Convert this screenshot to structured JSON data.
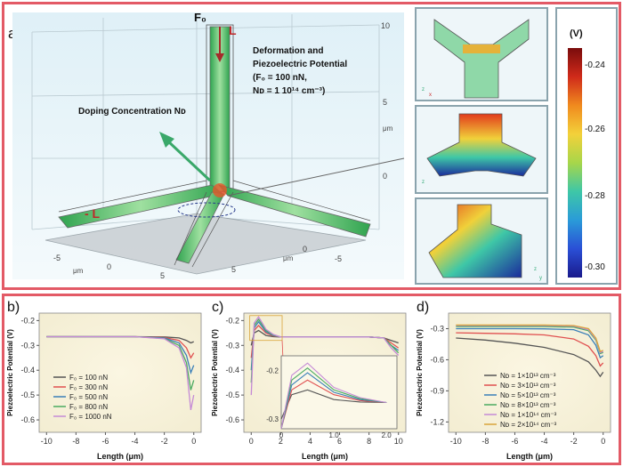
{
  "panel_a": {
    "letter": "a)",
    "force_label": "F₀",
    "length_top": "L",
    "length_left": "- L",
    "deformation_text": [
      "Deformation and",
      "Piezoelectric Potential",
      "(F₀ = 100 nN,",
      "Nᴅ = 1  10¹⁴ cm⁻³)"
    ],
    "doping_text": "Doping Concentration Nᴅ",
    "axis_ticks_vertical": [
      "10",
      "5",
      "0"
    ],
    "axis_unit": "μm",
    "floor_ticks_left": [
      "-5",
      "0",
      "5"
    ],
    "floor_ticks_right": [
      "-5",
      "0",
      "5"
    ],
    "colorbar": {
      "unit": "(V)",
      "ticks": [
        "-0.24",
        "-0.26",
        "-0.28",
        "-0.30"
      ],
      "colors": [
        "#7a0c0c",
        "#d02a1a",
        "#f08a1e",
        "#f3d13a",
        "#a7d64a",
        "#3ec7a7",
        "#2a9bd8",
        "#2a4fd6",
        "#1a1a8c"
      ]
    },
    "axes_labels": {
      "z": "z",
      "x": "x",
      "y": "y"
    }
  },
  "chart_data": [
    {
      "panel": "b)",
      "type": "line",
      "xlabel": "Length (μm)",
      "ylabel": "Piezoelectric Potential (V)",
      "xlim": [
        -10.5,
        0.5
      ],
      "ylim": [
        -0.65,
        -0.17
      ],
      "xticks": [
        -10,
        -8,
        -6,
        -4,
        -2,
        0
      ],
      "yticks": [
        -0.2,
        -0.3,
        -0.4,
        -0.5,
        -0.6
      ],
      "ytick_labels": [
        "-0.2",
        "-0.3",
        "-0.4",
        "-0.5",
        "-0.6"
      ],
      "series": [
        {
          "name": "F₀ = 100 nN",
          "color": "#555555",
          "x": [
            -10,
            -8,
            -6,
            -4,
            -2,
            -1,
            -0.5,
            -0.2,
            0
          ],
          "y": [
            -0.265,
            -0.265,
            -0.265,
            -0.265,
            -0.266,
            -0.27,
            -0.28,
            -0.29,
            -0.285
          ]
        },
        {
          "name": "F₀ = 300 nN",
          "color": "#e05050",
          "x": [
            -10,
            -8,
            -6,
            -4,
            -2,
            -1,
            -0.5,
            -0.2,
            0
          ],
          "y": [
            -0.265,
            -0.265,
            -0.265,
            -0.265,
            -0.268,
            -0.28,
            -0.31,
            -0.35,
            -0.33
          ]
        },
        {
          "name": "F₀ = 500 nN",
          "color": "#3a7fb8",
          "x": [
            -10,
            -8,
            -6,
            -4,
            -2,
            -1,
            -0.5,
            -0.2,
            0
          ],
          "y": [
            -0.265,
            -0.265,
            -0.265,
            -0.265,
            -0.27,
            -0.29,
            -0.34,
            -0.41,
            -0.38
          ]
        },
        {
          "name": "F₀ = 800 nN",
          "color": "#4aaa60",
          "x": [
            -10,
            -8,
            -6,
            -4,
            -2,
            -1,
            -0.5,
            -0.2,
            0
          ],
          "y": [
            -0.265,
            -0.265,
            -0.265,
            -0.265,
            -0.272,
            -0.3,
            -0.37,
            -0.48,
            -0.44
          ]
        },
        {
          "name": "F₀ = 1000 nN",
          "color": "#c58ad6",
          "x": [
            -10,
            -8,
            -6,
            -4,
            -2,
            -1,
            -0.5,
            -0.2,
            0
          ],
          "y": [
            -0.265,
            -0.265,
            -0.265,
            -0.265,
            -0.273,
            -0.31,
            -0.39,
            -0.56,
            -0.5
          ]
        }
      ]
    },
    {
      "panel": "c)",
      "type": "line",
      "xlabel": "Length (μm)",
      "ylabel": "Piezoelectric Potential (V)",
      "xlim": [
        -0.5,
        10.5
      ],
      "ylim": [
        -0.65,
        -0.17
      ],
      "xticks": [
        0,
        2,
        4,
        6,
        8,
        10
      ],
      "yticks": [
        -0.2,
        -0.3,
        -0.4,
        -0.5,
        -0.6
      ],
      "ytick_labels": [
        "-0.2",
        "-0.3",
        "-0.4",
        "-0.5",
        "-0.6"
      ],
      "series": [
        {
          "name": "100 nN",
          "color": "#555555",
          "x": [
            0,
            0.2,
            0.5,
            1,
            1.5,
            2,
            4,
            6,
            8,
            9,
            9.5,
            10
          ],
          "y": [
            -0.3,
            -0.25,
            -0.24,
            -0.26,
            -0.265,
            -0.266,
            -0.266,
            -0.266,
            -0.266,
            -0.27,
            -0.28,
            -0.29
          ]
        },
        {
          "name": "300 nN",
          "color": "#e05050",
          "x": [
            0,
            0.2,
            0.5,
            1,
            1.5,
            2,
            4,
            6,
            8,
            9,
            9.5,
            10
          ],
          "y": [
            -0.35,
            -0.24,
            -0.22,
            -0.25,
            -0.262,
            -0.266,
            -0.266,
            -0.266,
            -0.266,
            -0.27,
            -0.29,
            -0.31
          ]
        },
        {
          "name": "500 nN",
          "color": "#3a7fb8",
          "x": [
            0,
            0.2,
            0.5,
            1,
            1.5,
            2,
            4,
            6,
            8,
            9,
            9.5,
            10
          ],
          "y": [
            -0.4,
            -0.23,
            -0.205,
            -0.245,
            -0.26,
            -0.266,
            -0.266,
            -0.266,
            -0.266,
            -0.27,
            -0.3,
            -0.32
          ]
        },
        {
          "name": "800 nN",
          "color": "#4aaa60",
          "x": [
            0,
            0.2,
            0.5,
            1,
            1.5,
            2,
            4,
            6,
            8,
            9,
            9.5,
            10
          ],
          "y": [
            -0.45,
            -0.22,
            -0.195,
            -0.24,
            -0.258,
            -0.266,
            -0.266,
            -0.266,
            -0.266,
            -0.27,
            -0.3,
            -0.33
          ]
        },
        {
          "name": "1000 nN",
          "color": "#c58ad6",
          "x": [
            0,
            0.2,
            0.5,
            1,
            1.5,
            2,
            4,
            6,
            8,
            9,
            9.5,
            10
          ],
          "y": [
            -0.5,
            -0.21,
            -0.185,
            -0.235,
            -0.256,
            -0.266,
            -0.266,
            -0.266,
            -0.266,
            -0.27,
            -0.31,
            -0.34
          ]
        }
      ],
      "inset": {
        "xlim": [
          0,
          2.2
        ],
        "ylim": [
          -0.32,
          -0.17
        ],
        "xticks": [
          0,
          1,
          2
        ],
        "xtick_labels": [
          "0",
          "1.0",
          "2.0"
        ],
        "yticks": [
          -0.2,
          -0.3
        ],
        "ytick_labels": [
          "-0.2",
          "-0.3"
        ]
      }
    },
    {
      "panel": "d)",
      "type": "line",
      "xlabel": "Length (μm)",
      "ylabel": "Piezoelectric Potential (V)",
      "xlim": [
        -10.5,
        0.5
      ],
      "ylim": [
        -1.3,
        -0.15
      ],
      "xticks": [
        -10,
        -8,
        -6,
        -4,
        -2,
        0
      ],
      "yticks": [
        -0.3,
        -0.6,
        -0.9,
        -1.2
      ],
      "ytick_labels": [
        "-0.3",
        "-0.6",
        "-0.9",
        "-1.2"
      ],
      "series": [
        {
          "name": "Nᴅ = 1×10¹³ cm⁻³",
          "color": "#555555",
          "x": [
            -10,
            -8,
            -6,
            -4,
            -2,
            -1,
            -0.5,
            -0.2,
            0
          ],
          "y": [
            -0.39,
            -0.41,
            -0.44,
            -0.48,
            -0.55,
            -0.62,
            -0.7,
            -0.76,
            -0.72
          ]
        },
        {
          "name": "Nᴅ = 3×10¹³ cm⁻³",
          "color": "#e05050",
          "x": [
            -10,
            -8,
            -6,
            -4,
            -2,
            -1,
            -0.5,
            -0.2,
            0
          ],
          "y": [
            -0.34,
            -0.345,
            -0.35,
            -0.36,
            -0.4,
            -0.47,
            -0.56,
            -0.66,
            -0.63
          ]
        },
        {
          "name": "Nᴅ = 5×10¹³ cm⁻³",
          "color": "#3a7fb8",
          "x": [
            -10,
            -8,
            -6,
            -4,
            -2,
            -1,
            -0.5,
            -0.2,
            0
          ],
          "y": [
            -0.3,
            -0.3,
            -0.3,
            -0.302,
            -0.31,
            -0.36,
            -0.46,
            -0.58,
            -0.56
          ]
        },
        {
          "name": "Nᴅ = 8×10¹³ cm⁻³",
          "color": "#4aaa60",
          "x": [
            -10,
            -8,
            -6,
            -4,
            -2,
            -1,
            -0.5,
            -0.2,
            0
          ],
          "y": [
            -0.28,
            -0.28,
            -0.28,
            -0.28,
            -0.285,
            -0.32,
            -0.41,
            -0.54,
            -0.53
          ]
        },
        {
          "name": "Nᴅ = 1×10¹⁴ cm⁻³",
          "color": "#c58ad6",
          "x": [
            -10,
            -8,
            -6,
            -4,
            -2,
            -1,
            -0.5,
            -0.2,
            0
          ],
          "y": [
            -0.27,
            -0.27,
            -0.27,
            -0.27,
            -0.275,
            -0.31,
            -0.4,
            -0.53,
            -0.52
          ]
        },
        {
          "name": "Nᴅ = 2×10¹⁴ cm⁻³",
          "color": "#d9a43a",
          "x": [
            -10,
            -8,
            -6,
            -4,
            -2,
            -1,
            -0.5,
            -0.2,
            0
          ],
          "y": [
            -0.265,
            -0.265,
            -0.265,
            -0.265,
            -0.27,
            -0.3,
            -0.39,
            -0.52,
            -0.51
          ]
        }
      ]
    }
  ]
}
